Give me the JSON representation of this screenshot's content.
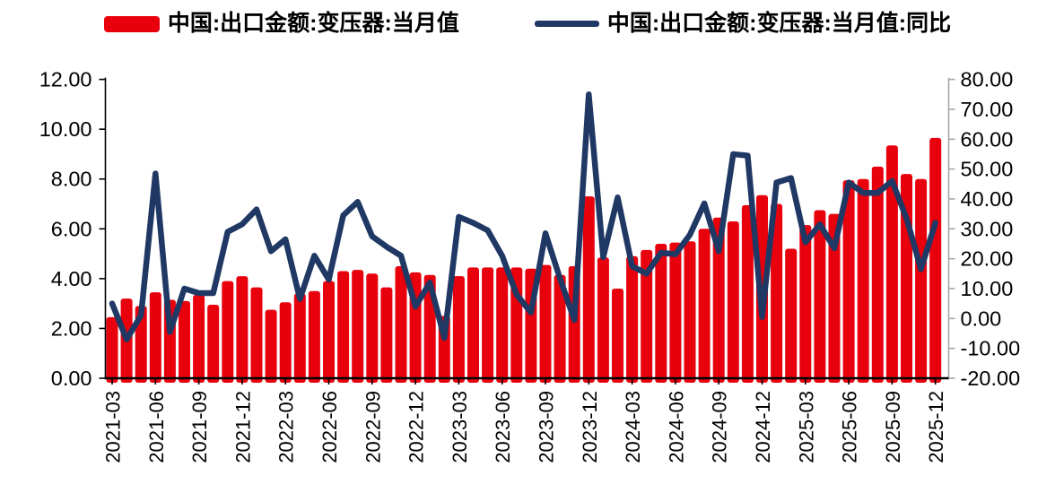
{
  "legend": {
    "bar_label": "中国:出口金额:变压器:当月值",
    "line_label": "中国:出口金额:变压器:当月值:同比"
  },
  "colors": {
    "bar": "#e8000d",
    "line": "#1f3864",
    "axis": "#000000",
    "right_axis": "#a6a6a6",
    "text": "#000000",
    "background": "#ffffff"
  },
  "chart_data": {
    "type": "bar",
    "title": "",
    "xlabel": "",
    "ylabel": "",
    "categories": [
      "2021-03",
      "2021-04",
      "2021-05",
      "2021-06",
      "2021-07",
      "2021-08",
      "2021-09",
      "2021-10",
      "2021-11",
      "2021-12",
      "2022-01",
      "2022-02",
      "2022-03",
      "2022-04",
      "2022-05",
      "2022-06",
      "2022-07",
      "2022-08",
      "2022-09",
      "2022-10",
      "2022-11",
      "2022-12",
      "2023-01",
      "2023-02",
      "2023-03",
      "2023-04",
      "2023-05",
      "2023-06",
      "2023-07",
      "2023-08",
      "2023-09",
      "2023-10",
      "2023-11",
      "2023-12",
      "2024-01",
      "2024-02",
      "2024-03",
      "2024-04",
      "2024-05",
      "2024-06",
      "2024-07",
      "2024-08",
      "2024-09",
      "2024-10",
      "2024-11",
      "2024-12",
      "2025-01",
      "2025-02",
      "2025-03",
      "2025-04",
      "2025-05",
      "2025-06",
      "2025-07",
      "2025-08",
      "2025-09",
      "2025-10",
      "2025-11",
      "2025-12"
    ],
    "x_tick_labels": [
      "2021-03",
      "2021-06",
      "2021-09",
      "2021-12",
      "2022-03",
      "2022-06",
      "2022-09",
      "2022-12",
      "2023-03",
      "2023-06",
      "2023-09",
      "2023-12",
      "2024-03",
      "2024-06",
      "2024-09",
      "2024-12",
      "2025-03",
      "2025-06",
      "2025-09",
      "2025-12"
    ],
    "x_tick_every": 3,
    "series": [
      {
        "name": "中国:出口金额:变压器:当月值",
        "type": "bar",
        "axis": "left",
        "values": [
          2.45,
          3.2,
          2.9,
          3.45,
          3.15,
          3.1,
          3.35,
          2.95,
          3.9,
          4.1,
          3.65,
          2.75,
          3.05,
          3.4,
          3.5,
          3.9,
          4.3,
          4.35,
          4.2,
          3.65,
          4.5,
          4.25,
          4.15,
          2.5,
          4.1,
          4.45,
          4.45,
          4.45,
          4.45,
          4.4,
          4.55,
          4.15,
          4.5,
          7.3,
          4.85,
          3.6,
          4.9,
          5.15,
          5.4,
          5.45,
          5.5,
          6.0,
          6.45,
          6.3,
          6.95,
          7.35,
          7.0,
          5.2,
          6.15,
          6.75,
          6.6,
          7.95,
          8.0,
          8.5,
          9.35,
          8.2,
          8.0,
          9.65
        ]
      },
      {
        "name": "中国:出口金额:变压器:当月值:同比",
        "type": "line",
        "axis": "right",
        "values": [
          5,
          -7,
          1,
          48.5,
          -4.5,
          10,
          8.5,
          8.5,
          29,
          31.5,
          36.5,
          22.5,
          26.5,
          6.5,
          21,
          13,
          34.5,
          39,
          27.5,
          24,
          21,
          4,
          12,
          -6.5,
          34,
          32,
          29.5,
          21,
          8,
          2,
          28.5,
          13.5,
          -0.5,
          75,
          20.5,
          40.5,
          17.5,
          15,
          22,
          21.5,
          28,
          38.5,
          22.5,
          55,
          54.5,
          0.5,
          45.5,
          47,
          25.5,
          31.5,
          23.5,
          45.5,
          42,
          42,
          46,
          33.5,
          16.5,
          32
        ]
      }
    ],
    "left_axis": {
      "min": 0,
      "max": 12,
      "step": 2,
      "labels": [
        "0.00",
        "2.00",
        "4.00",
        "6.00",
        "8.00",
        "10.00",
        "12.00"
      ]
    },
    "right_axis": {
      "min": -20,
      "max": 80,
      "step": 10,
      "labels": [
        "-20.00",
        "-10.00",
        "0.00",
        "10.00",
        "20.00",
        "30.00",
        "40.00",
        "50.00",
        "60.00",
        "70.00",
        "80.00"
      ]
    },
    "grid": false,
    "legend_position": "top"
  }
}
